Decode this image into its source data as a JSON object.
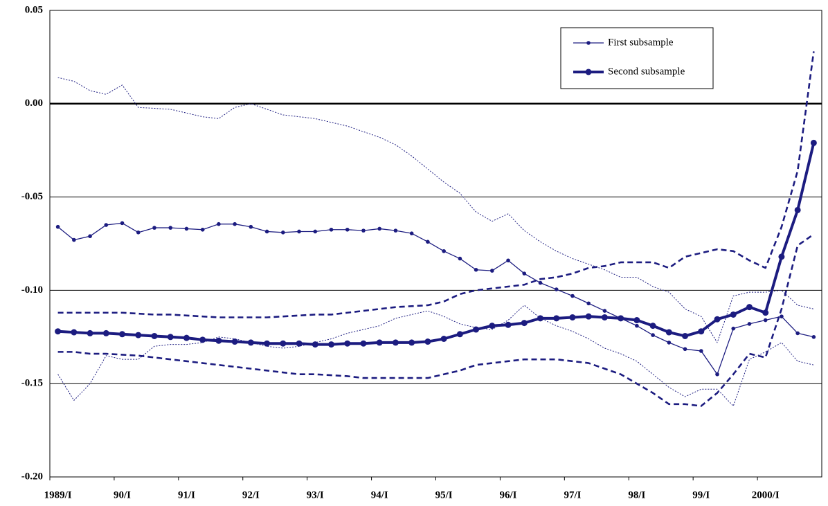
{
  "chart_data": {
    "type": "line",
    "categories": [
      "1989/I",
      null,
      null,
      null,
      "90/I",
      null,
      null,
      null,
      "91/I",
      null,
      null,
      null,
      "92/I",
      null,
      null,
      null,
      "93/I",
      null,
      null,
      null,
      "94/I",
      null,
      null,
      null,
      "95/I",
      null,
      null,
      null,
      "96/I",
      null,
      null,
      null,
      "97/I",
      null,
      null,
      null,
      "98/I",
      null,
      null,
      null,
      "99/I",
      null,
      null,
      null,
      "2000/I",
      null,
      null,
      null
    ],
    "ylim": [
      -0.2,
      0.05
    ],
    "yticks": [
      {
        "value": 0.05,
        "label": "0.05"
      },
      {
        "value": 0,
        "label": "0.00"
      },
      {
        "value": -0.05,
        "label": "-0.05"
      },
      {
        "value": -0.1,
        "label": "-0.10"
      },
      {
        "value": -0.15,
        "label": "-0.15"
      },
      {
        "value": -0.2,
        "label": "-0.20"
      }
    ],
    "grid": true,
    "zero_line": true,
    "legend": "upper right",
    "series": [
      {
        "name": "First subsample",
        "color": "#1c1c80",
        "style": "thin-markers",
        "values": [
          -0.066,
          -0.073,
          -0.071,
          -0.065,
          -0.064,
          -0.069,
          -0.0665,
          -0.0665,
          -0.067,
          -0.0675,
          -0.0645,
          -0.0645,
          -0.066,
          -0.0685,
          -0.069,
          -0.0685,
          -0.0685,
          -0.0675,
          -0.0675,
          -0.068,
          -0.067,
          -0.068,
          -0.0695,
          -0.074,
          -0.079,
          -0.083,
          -0.089,
          -0.0895,
          -0.084,
          -0.091,
          -0.096,
          -0.0995,
          -0.103,
          -0.107,
          -0.111,
          -0.115,
          -0.119,
          -0.124,
          -0.128,
          -0.1315,
          -0.1325,
          -0.145,
          -0.1205,
          -0.118,
          -0.116,
          -0.114,
          -0.123,
          -0.125
        ]
      },
      {
        "name": "Second subsample",
        "color": "#1c1c80",
        "style": "thick-markers",
        "values": [
          -0.122,
          -0.1225,
          -0.123,
          -0.123,
          -0.1235,
          -0.124,
          -0.1245,
          -0.125,
          -0.1255,
          -0.1265,
          -0.127,
          -0.1275,
          -0.128,
          -0.1285,
          -0.1285,
          -0.1285,
          -0.129,
          -0.129,
          -0.1285,
          -0.1285,
          -0.128,
          -0.128,
          -0.128,
          -0.1275,
          -0.126,
          -0.1235,
          -0.121,
          -0.119,
          -0.1185,
          -0.1175,
          -0.115,
          -0.115,
          -0.1145,
          -0.114,
          -0.1145,
          -0.115,
          -0.116,
          -0.119,
          -0.1225,
          -0.1245,
          -0.122,
          -0.1155,
          -0.113,
          -0.109,
          -0.112,
          -0.082,
          -0.057,
          -0.021
        ]
      },
      {
        "color": "#1c1c80",
        "style": "dotted",
        "values": [
          0.014,
          0.012,
          0.007,
          0.005,
          0.01,
          -0.002,
          -0.0025,
          -0.003,
          -0.005,
          -0.007,
          -0.008,
          -0.002,
          0,
          -0.003,
          -0.006,
          -0.007,
          -0.008,
          -0.01,
          -0.012,
          -0.015,
          -0.018,
          -0.022,
          -0.028,
          -0.035,
          -0.042,
          -0.048,
          -0.058,
          -0.063,
          -0.059,
          -0.068,
          -0.074,
          -0.079,
          -0.083,
          -0.086,
          -0.089,
          -0.093,
          -0.093,
          -0.098,
          -0.101,
          -0.11,
          -0.114,
          -0.128,
          -0.103,
          -0.101,
          -0.101,
          -0.1,
          -0.108,
          -0.11
        ]
      },
      {
        "color": "#1c1c80",
        "style": "dotted",
        "values": [
          -0.145,
          -0.159,
          -0.15,
          -0.135,
          -0.137,
          -0.137,
          -0.13,
          -0.129,
          -0.129,
          -0.128,
          -0.125,
          -0.126,
          -0.128,
          -0.13,
          -0.131,
          -0.13,
          -0.128,
          -0.126,
          -0.123,
          -0.121,
          -0.119,
          -0.115,
          -0.113,
          -0.111,
          -0.114,
          -0.118,
          -0.12,
          -0.121,
          -0.116,
          -0.108,
          -0.115,
          -0.119,
          -0.122,
          -0.126,
          -0.131,
          -0.134,
          -0.138,
          -0.145,
          -0.152,
          -0.157,
          -0.153,
          -0.153,
          -0.162,
          -0.137,
          -0.133,
          -0.128,
          -0.138,
          -0.14
        ]
      },
      {
        "color": "#1c1c80",
        "style": "dashed",
        "values": [
          -0.112,
          -0.112,
          -0.112,
          -0.112,
          -0.112,
          -0.1125,
          -0.113,
          -0.113,
          -0.1135,
          -0.114,
          -0.1145,
          -0.1145,
          -0.1145,
          -0.1145,
          -0.114,
          -0.1135,
          -0.113,
          -0.113,
          -0.112,
          -0.111,
          -0.11,
          -0.109,
          -0.1085,
          -0.108,
          -0.106,
          -0.102,
          -0.1,
          -0.099,
          -0.098,
          -0.097,
          -0.094,
          -0.093,
          -0.091,
          -0.088,
          -0.087,
          -0.085,
          -0.085,
          -0.085,
          -0.088,
          -0.082,
          -0.08,
          -0.078,
          -0.079,
          -0.084,
          -0.088,
          -0.066,
          -0.036,
          0.028
        ]
      },
      {
        "color": "#1c1c80",
        "style": "dashed",
        "values": [
          -0.133,
          -0.133,
          -0.134,
          -0.134,
          -0.1345,
          -0.135,
          -0.136,
          -0.137,
          -0.138,
          -0.139,
          -0.14,
          -0.141,
          -0.142,
          -0.143,
          -0.144,
          -0.145,
          -0.145,
          -0.1455,
          -0.146,
          -0.147,
          -0.147,
          -0.147,
          -0.147,
          -0.147,
          -0.145,
          -0.143,
          -0.14,
          -0.139,
          -0.138,
          -0.137,
          -0.137,
          -0.137,
          -0.138,
          -0.139,
          -0.142,
          -0.145,
          -0.15,
          -0.155,
          -0.161,
          -0.161,
          -0.162,
          -0.155,
          -0.145,
          -0.134,
          -0.136,
          -0.11,
          -0.076,
          -0.07
        ]
      }
    ]
  }
}
